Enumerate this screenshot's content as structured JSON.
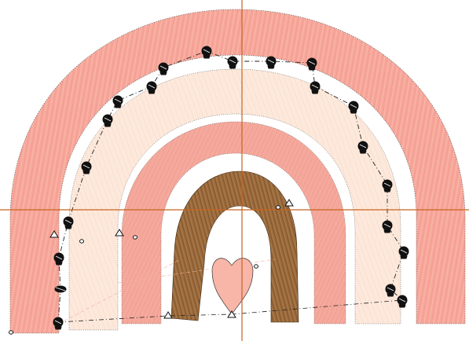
{
  "canvas": {
    "background": "#ffffff",
    "crosshair_color": "#c8641e"
  },
  "design": {
    "name": "rainbow-with-heart-embroidery",
    "colors": {
      "outer_band": "#f7a79a",
      "outer_band_stitch": "#e8837a",
      "second_band": "#fde9dc",
      "second_band_stitch": "#f2c8ae",
      "third_band": "#f5a99c",
      "inner_band": "#9a6a3c",
      "inner_band_stitch": "#6e4622",
      "heart": "#f8b6a8",
      "outline": "#222222"
    },
    "markers": {
      "node_icon": "spool-node-icon",
      "triangle_icon": "triangle-marker-icon",
      "circle_icon": "circle-marker-icon"
    }
  }
}
